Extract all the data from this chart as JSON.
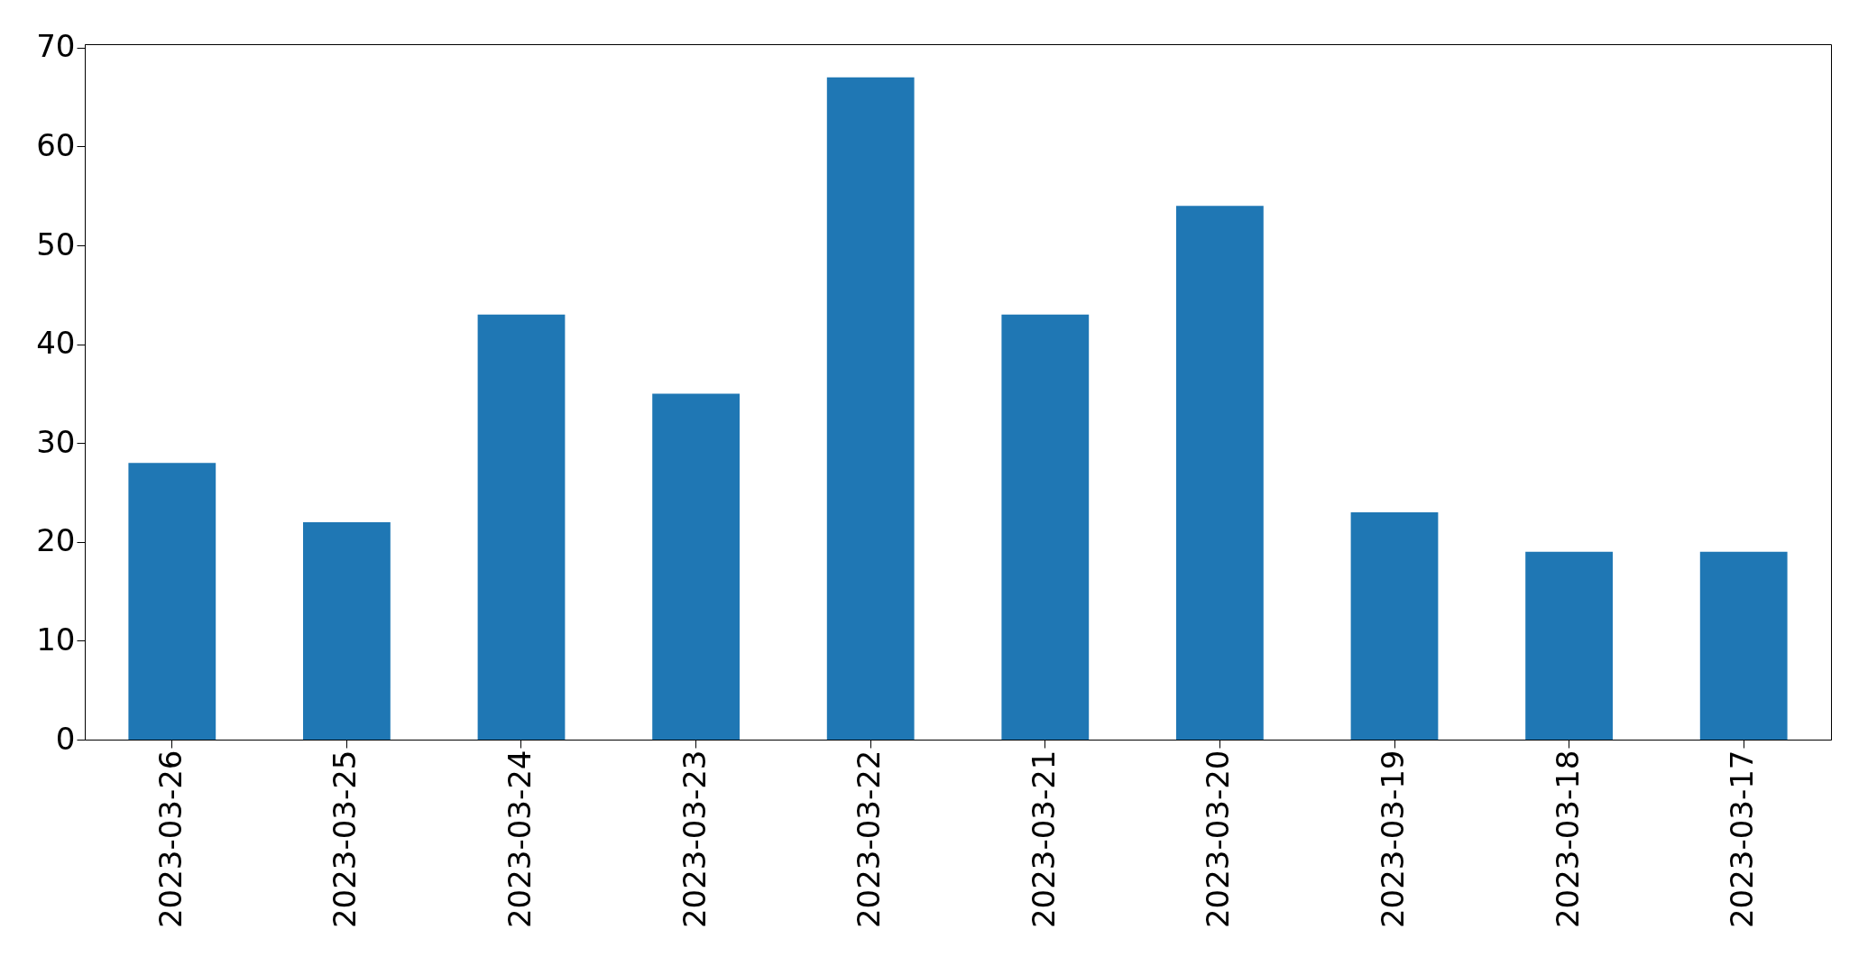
{
  "chart_data": {
    "type": "bar",
    "categories": [
      "2023-03-26",
      "2023-03-25",
      "2023-03-24",
      "2023-03-23",
      "2023-03-22",
      "2023-03-21",
      "2023-03-20",
      "2023-03-19",
      "2023-03-18",
      "2023-03-17"
    ],
    "values": [
      28,
      22,
      43,
      35,
      67,
      43,
      54,
      23,
      19,
      19
    ],
    "color": "#1f77b4",
    "ylim": [
      0,
      70.35
    ],
    "yticks": [
      0,
      10,
      20,
      30,
      40,
      50,
      60,
      70
    ],
    "grid": false
  }
}
